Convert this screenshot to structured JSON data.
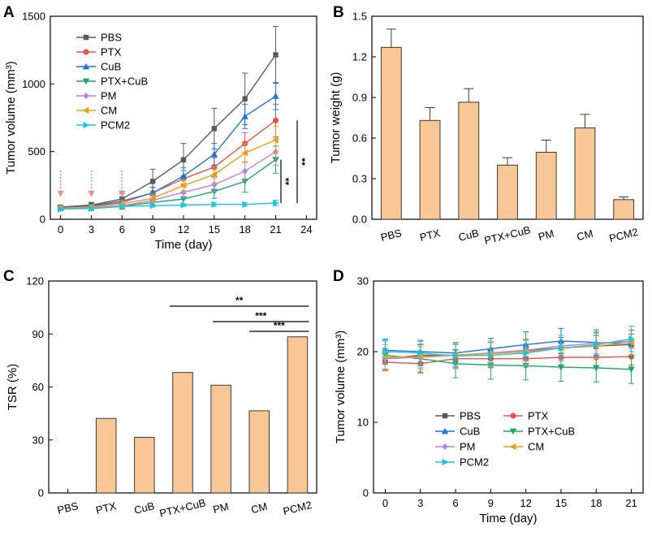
{
  "panels": {
    "A": "A",
    "B": "B",
    "C": "C",
    "D": "D"
  },
  "chart_data": [
    {
      "panel": "A",
      "type": "line",
      "xlabel": "Time (day)",
      "ylabel": "Tumor volume (mm³)",
      "xlim": [
        -1,
        25
      ],
      "ylim": [
        0,
        1500
      ],
      "xticks": [
        0,
        3,
        6,
        9,
        12,
        15,
        18,
        21,
        24
      ],
      "yticks": [
        0,
        500,
        1000,
        1500
      ],
      "x": [
        0,
        3,
        6,
        9,
        12,
        15,
        18,
        21
      ],
      "series": [
        {
          "name": "PBS",
          "color": "#595959",
          "marker": "square",
          "values": [
            90,
            105,
            150,
            280,
            440,
            670,
            890,
            1215
          ],
          "errors": [
            15,
            20,
            40,
            90,
            120,
            150,
            190,
            210
          ]
        },
        {
          "name": "PTX",
          "color": "#e8534a",
          "marker": "circle",
          "values": [
            85,
            95,
            125,
            195,
            300,
            385,
            560,
            730
          ],
          "errors": [
            15,
            15,
            25,
            40,
            60,
            70,
            80,
            120
          ]
        },
        {
          "name": "CuB",
          "color": "#1f77d4",
          "marker": "triangle-up",
          "values": [
            85,
            100,
            135,
            195,
            320,
            480,
            760,
            910
          ],
          "errors": [
            15,
            15,
            30,
            40,
            60,
            80,
            90,
            100
          ]
        },
        {
          "name": "PTX+CuB",
          "color": "#1aa866",
          "marker": "triangle-down",
          "values": [
            80,
            80,
            95,
            125,
            150,
            205,
            280,
            440
          ],
          "errors": [
            15,
            15,
            20,
            25,
            40,
            50,
            80,
            100
          ]
        },
        {
          "name": "PM",
          "color": "#c27ce6",
          "marker": "diamond",
          "values": [
            80,
            85,
            100,
            140,
            200,
            255,
            355,
            500
          ],
          "errors": [
            15,
            15,
            20,
            30,
            40,
            50,
            70,
            100
          ]
        },
        {
          "name": "CM",
          "color": "#e8a21a",
          "marker": "triangle-left",
          "values": [
            82,
            90,
            115,
            155,
            250,
            330,
            490,
            585
          ],
          "errors": [
            15,
            15,
            20,
            30,
            40,
            60,
            70,
            100
          ]
        },
        {
          "name": "PCM2",
          "color": "#22c4dd",
          "marker": "triangle-right",
          "values": [
            75,
            80,
            95,
            100,
            105,
            110,
            110,
            120
          ],
          "errors": [
            10,
            10,
            10,
            10,
            10,
            15,
            15,
            20
          ]
        }
      ],
      "arrow_days": [
        0,
        3,
        6
      ],
      "significance": [
        {
          "label": "**",
          "from": 120,
          "to": 440
        },
        {
          "label": "**",
          "from": 120,
          "to": 730
        }
      ]
    },
    {
      "panel": "B",
      "type": "bar",
      "ylabel": "Tumor weight (g)",
      "ylim": [
        0,
        1.5
      ],
      "yticks": [
        0.0,
        0.3,
        0.6,
        0.9,
        1.2,
        1.5
      ],
      "categories": [
        "PBS",
        "PTX",
        "CuB",
        "PTX+CuB",
        "PM",
        "CM",
        "PCM2"
      ],
      "values": [
        1.27,
        0.73,
        0.865,
        0.4,
        0.495,
        0.675,
        0.145
      ],
      "errors": [
        0.135,
        0.095,
        0.1,
        0.055,
        0.09,
        0.1,
        0.02
      ],
      "bar_color": "#f9c796"
    },
    {
      "panel": "C",
      "type": "bar",
      "ylabel": "TSR (%)",
      "ylim": [
        0,
        120
      ],
      "yticks": [
        0,
        30,
        60,
        90,
        120
      ],
      "categories": [
        "PBS",
        "PTX",
        "CuB",
        "PTX+CuB",
        "PM",
        "CM",
        "PCM2"
      ],
      "values": [
        0,
        42.2,
        31.5,
        68.2,
        61,
        46.5,
        88.4
      ],
      "bar_color": "#f9c796",
      "significance": [
        {
          "label": "**",
          "from": "PTX+CuB",
          "to": "PCM2"
        },
        {
          "label": "***",
          "from": "PM",
          "to": "PCM2"
        },
        {
          "label": "***",
          "from": "CM",
          "to": "PCM2"
        }
      ]
    },
    {
      "panel": "D",
      "type": "line",
      "xlabel": "Time (day)",
      "ylabel": "Tumor volume (mm³)",
      "xlim": [
        -1,
        22
      ],
      "ylim": [
        0,
        30
      ],
      "xticks": [
        0,
        3,
        6,
        9,
        12,
        15,
        18,
        21
      ],
      "yticks": [
        0,
        10,
        20,
        30
      ],
      "x": [
        0,
        3,
        6,
        9,
        12,
        15,
        18,
        21
      ],
      "series": [
        {
          "name": "PBS",
          "color": "#595959",
          "marker": "square",
          "values": [
            19.0,
            19.5,
            19.5,
            19.8,
            20.2,
            20.5,
            20.8,
            21.0
          ],
          "errors": [
            1.5,
            1.5,
            1.5,
            1.5,
            1.5,
            1.5,
            1.5,
            1.5
          ]
        },
        {
          "name": "PTX",
          "color": "#e8534a",
          "marker": "circle",
          "values": [
            18.5,
            18.3,
            19.0,
            19.0,
            19.0,
            19.2,
            19.2,
            19.3
          ],
          "errors": [
            1.2,
            1.2,
            1.2,
            1.2,
            1.2,
            1.2,
            1.2,
            1.2
          ]
        },
        {
          "name": "CuB",
          "color": "#1f77d4",
          "marker": "triangle-up",
          "values": [
            20.2,
            20.0,
            19.8,
            20.4,
            21.0,
            21.5,
            21.3,
            21.2
          ],
          "errors": [
            1.5,
            1.5,
            1.5,
            1.5,
            1.8,
            1.8,
            1.8,
            1.8
          ]
        },
        {
          "name": "PTX+CuB",
          "color": "#1aa866",
          "marker": "triangle-down",
          "values": [
            19.5,
            19.0,
            18.3,
            18.1,
            18.0,
            17.8,
            17.7,
            17.5
          ],
          "errors": [
            2.0,
            2.0,
            2.0,
            2.0,
            2.0,
            2.0,
            2.0,
            2.0
          ]
        },
        {
          "name": "PM",
          "color": "#c27ce6",
          "marker": "diamond",
          "values": [
            19.0,
            19.2,
            19.5,
            19.8,
            20.2,
            20.8,
            21.2,
            21.5
          ],
          "errors": [
            1.5,
            1.5,
            1.5,
            1.5,
            1.5,
            1.5,
            1.5,
            1.5
          ]
        },
        {
          "name": "CM",
          "color": "#e8a21a",
          "marker": "triangle-left",
          "values": [
            19.2,
            19.3,
            19.5,
            19.7,
            20.0,
            20.5,
            20.8,
            21.3
          ],
          "errors": [
            1.8,
            1.8,
            1.8,
            1.8,
            1.8,
            1.8,
            1.8,
            1.8
          ]
        },
        {
          "name": "PCM2",
          "color": "#22c4dd",
          "marker": "triangle-right",
          "values": [
            20.0,
            19.8,
            19.4,
            19.5,
            19.8,
            20.5,
            21.0,
            21.8
          ],
          "errors": [
            1.8,
            1.8,
            1.8,
            1.8,
            1.8,
            1.8,
            1.8,
            1.8
          ]
        }
      ]
    }
  ]
}
